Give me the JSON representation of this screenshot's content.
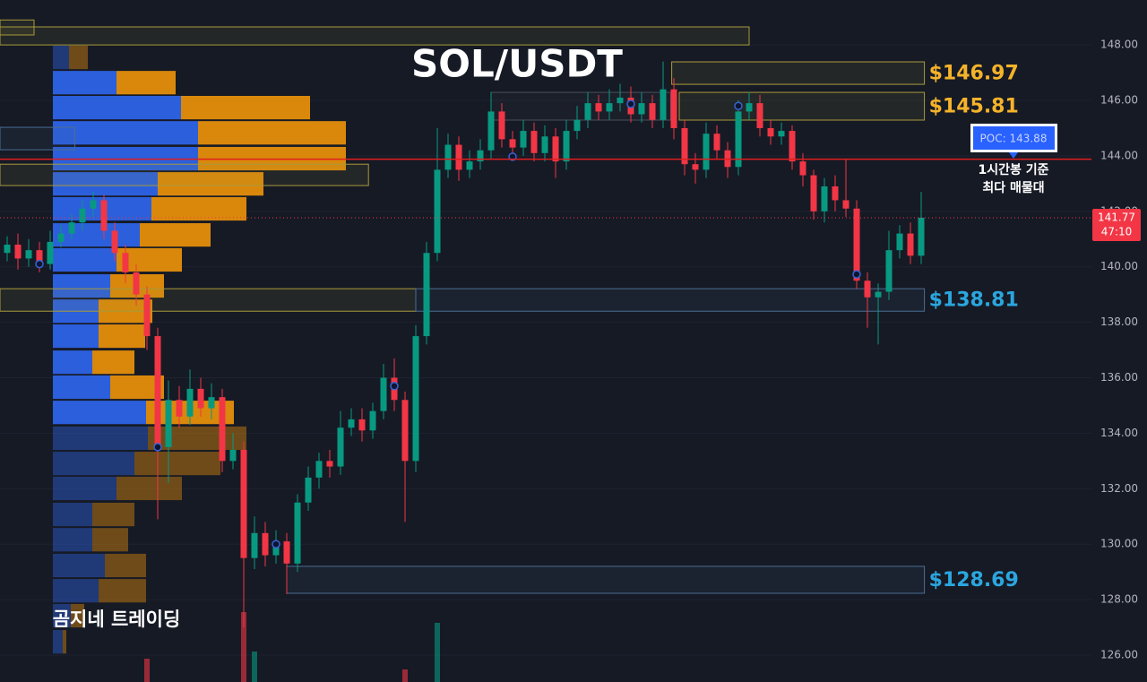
{
  "chart_data": {
    "type": "candlestick",
    "title": "SOL/USDT",
    "watermark": "곰지네 트레이딩",
    "ylim": [
      125.03,
      149.62
    ],
    "yticks": [
      {
        "value": 126,
        "label": "126.00"
      },
      {
        "value": 128,
        "label": "128.00"
      },
      {
        "value": 130,
        "label": "130.00"
      },
      {
        "value": 132,
        "label": "132.00"
      },
      {
        "value": 134,
        "label": "134.00"
      },
      {
        "value": 136,
        "label": "136.00"
      },
      {
        "value": 138,
        "label": "138.00"
      },
      {
        "value": 140,
        "label": "140.00"
      },
      {
        "value": 142,
        "label": "142.00"
      },
      {
        "value": 144,
        "label": "144.00"
      },
      {
        "value": 146,
        "label": "146.00"
      },
      {
        "value": 148,
        "label": "148.00"
      }
    ],
    "grid": true,
    "up_color": "#089981",
    "down_color": "#f23645",
    "open": [
      140.5,
      140.8,
      140.3,
      140.6,
      140.1,
      140.9,
      141.2,
      141.6,
      142.1,
      142.4,
      141.3,
      140.5,
      139.8,
      139.0,
      137.5,
      133.5,
      135.2,
      134.6,
      135.6,
      134.9,
      135.3,
      133.0,
      133.4,
      129.5,
      130.4,
      129.6,
      130.1,
      129.3,
      131.5,
      132.4,
      133.0,
      132.8,
      134.2,
      134.5,
      134.1,
      134.8,
      136.0,
      135.2,
      133.0,
      137.5,
      140.5,
      143.5,
      144.4,
      143.5,
      143.8,
      144.2,
      145.6,
      144.6,
      144.3,
      144.9,
      144.1,
      144.7,
      143.8,
      144.9,
      145.3,
      145.9,
      145.6,
      145.9,
      146.1,
      145.5,
      145.9,
      145.3,
      146.4,
      145.0,
      143.7,
      143.5,
      144.8,
      144.2,
      143.6,
      145.6,
      145.9,
      145.0,
      144.7,
      144.9,
      143.8,
      143.3,
      142.0,
      142.9,
      142.4,
      142.1,
      139.5,
      138.9,
      139.1,
      140.6,
      141.2,
      140.4
    ],
    "high": [
      141.1,
      141.2,
      141.0,
      140.9,
      141.3,
      141.5,
      141.9,
      142.4,
      142.7,
      142.6,
      141.6,
      140.8,
      140.1,
      139.3,
      137.8,
      135.9,
      135.7,
      136.3,
      136.0,
      135.8,
      135.6,
      134.0,
      133.7,
      131.0,
      130.8,
      130.5,
      130.4,
      131.8,
      132.8,
      133.3,
      133.4,
      134.8,
      134.9,
      134.9,
      135.1,
      136.5,
      136.7,
      135.5,
      137.9,
      140.9,
      145.0,
      144.8,
      144.7,
      144.2,
      144.6,
      146.3,
      145.9,
      144.9,
      145.3,
      145.2,
      145.1,
      145.0,
      145.3,
      145.8,
      146.3,
      146.2,
      146.4,
      146.6,
      146.5,
      146.3,
      146.2,
      147.4,
      146.8,
      145.3,
      144.1,
      145.2,
      145.1,
      144.5,
      146.0,
      146.3,
      146.2,
      145.3,
      145.2,
      145.1,
      144.1,
      143.5,
      143.2,
      143.3,
      143.9,
      142.4,
      139.8,
      139.4,
      141.3,
      141.5,
      141.6,
      142.7
    ],
    "low": [
      140.2,
      139.9,
      140.0,
      139.8,
      139.9,
      140.7,
      141.0,
      141.3,
      141.8,
      141.0,
      140.2,
      139.4,
      138.6,
      137.0,
      130.9,
      132.2,
      134.2,
      134.3,
      134.6,
      134.5,
      132.6,
      132.7,
      127.0,
      129.1,
      129.2,
      129.3,
      128.2,
      129.0,
      131.2,
      132.0,
      132.4,
      132.5,
      133.9,
      133.7,
      133.8,
      134.5,
      134.8,
      130.8,
      132.6,
      137.2,
      140.2,
      143.2,
      143.1,
      143.2,
      143.5,
      143.9,
      144.3,
      143.9,
      144.0,
      143.8,
      143.8,
      143.2,
      143.5,
      144.6,
      145.0,
      145.3,
      145.3,
      145.6,
      145.2,
      145.2,
      145.0,
      145.0,
      144.6,
      143.3,
      143.0,
      143.2,
      143.9,
      143.2,
      143.3,
      145.3,
      144.7,
      144.4,
      144.4,
      143.5,
      142.9,
      141.7,
      141.6,
      142.0,
      141.8,
      139.2,
      137.8,
      137.2,
      138.8,
      140.3,
      140.1,
      140.1
    ],
    "close": [
      140.8,
      140.3,
      140.6,
      140.1,
      140.9,
      141.2,
      141.6,
      142.1,
      142.4,
      141.3,
      140.5,
      139.8,
      139.0,
      137.5,
      133.5,
      135.2,
      134.6,
      135.6,
      134.9,
      135.3,
      133.0,
      133.4,
      129.5,
      130.4,
      129.6,
      130.1,
      129.3,
      131.5,
      132.4,
      133.0,
      132.8,
      134.2,
      134.5,
      134.1,
      134.8,
      136.0,
      135.2,
      133.0,
      137.5,
      140.5,
      143.5,
      144.4,
      143.5,
      143.8,
      144.2,
      145.6,
      144.6,
      144.3,
      144.9,
      144.1,
      144.7,
      143.8,
      144.9,
      145.3,
      145.9,
      145.6,
      145.9,
      146.1,
      145.5,
      145.9,
      145.3,
      146.4,
      145.0,
      143.7,
      143.5,
      144.8,
      144.2,
      143.6,
      145.6,
      145.9,
      145.0,
      144.7,
      144.9,
      143.8,
      143.3,
      142.0,
      142.9,
      142.4,
      142.1,
      139.5,
      138.9,
      139.1,
      140.6,
      141.2,
      140.4,
      141.77
    ],
    "volume": [
      null,
      null,
      null,
      null,
      null,
      null,
      null,
      null,
      null,
      null,
      null,
      null,
      null,
      26,
      null,
      null,
      null,
      null,
      null,
      null,
      null,
      null,
      78,
      34,
      null,
      null,
      null,
      null,
      null,
      null,
      null,
      null,
      null,
      null,
      null,
      null,
      null,
      14,
      null,
      null,
      66,
      null,
      null,
      null,
      null,
      null,
      null,
      null,
      null,
      null,
      null,
      null,
      null,
      null,
      null,
      null,
      null,
      null,
      null,
      null,
      null,
      null,
      null,
      null,
      null,
      null,
      null,
      null,
      null,
      null,
      null,
      null,
      null,
      null,
      null,
      null,
      null,
      null,
      null,
      null,
      null,
      null,
      null,
      null,
      null,
      null
    ],
    "profile": {
      "prices": [
        147.55,
        146.64,
        145.74,
        144.83,
        143.9,
        142.99,
        142.09,
        141.15,
        140.25,
        139.31,
        138.4,
        137.5,
        136.56,
        135.66,
        134.75,
        133.82,
        132.91,
        132.01,
        131.07,
        130.16,
        129.23,
        128.32,
        127.42,
        126.48
      ],
      "buy": [
        18,
        71,
        143,
        162,
        162,
        117,
        110,
        97,
        71,
        64,
        51,
        51,
        44,
        64,
        104,
        106,
        91,
        71,
        44,
        44,
        58,
        51,
        20,
        11
      ],
      "sell": [
        21,
        66,
        144,
        165,
        165,
        118,
        106,
        79,
        73,
        60,
        60,
        52,
        47,
        60,
        98,
        110,
        96,
        73,
        47,
        40,
        46,
        53,
        15,
        4
      ],
      "buy_color": "#2c5fdb",
      "sell_color": "#d9880c",
      "value_area": [
        134.3,
        147.1
      ]
    },
    "zones": [
      {
        "top": 148.9,
        "bottom": 148.36,
        "start": -0.7,
        "end": 2.5,
        "color": "#a89a3c"
      },
      {
        "top": 148.65,
        "bottom": 148.0,
        "start": -0.7,
        "end": 69,
        "color": "#a89a3c"
      },
      {
        "top": 147.39,
        "bottom": 146.58,
        "start": 61.8,
        "end": 85.3,
        "color": "#a89a3c",
        "label": "$146.97",
        "label_color": "#f5b32a"
      },
      {
        "top": 146.29,
        "bottom": 145.29,
        "start": 45,
        "end": 61.7,
        "color": "#4a4f5a"
      },
      {
        "top": 146.29,
        "bottom": 145.29,
        "start": 62.5,
        "end": 85.3,
        "color": "#a89a3c",
        "label": "$145.81",
        "label_color": "#f5b32a"
      },
      {
        "top": 145.03,
        "bottom": 144.22,
        "start": -0.7,
        "end": 6.3,
        "color": "#4a6f93"
      },
      {
        "top": 143.7,
        "bottom": 142.93,
        "start": -0.7,
        "end": 33.6,
        "color": "#a89a3c"
      },
      {
        "top": 139.21,
        "bottom": 138.4,
        "start": -0.7,
        "end": 38,
        "color": "#a89a3c"
      },
      {
        "top": 139.21,
        "bottom": 138.4,
        "start": 38,
        "end": 85.3,
        "color": "#4a6f93",
        "label": "$138.81",
        "label_color": "#2ba6df"
      },
      {
        "top": 129.2,
        "bottom": 128.23,
        "start": 26,
        "end": 85.3,
        "color": "#4a6f93",
        "label": "$128.69",
        "label_color": "#2ba6df"
      }
    ],
    "session_poc": {
      "x": [
        3,
        14,
        25,
        36,
        47,
        58,
        68,
        79
      ],
      "values": [
        140.1,
        133.5,
        130.0,
        135.7,
        143.97,
        145.87,
        145.8,
        139.73
      ]
    },
    "poc": {
      "value": 143.88,
      "label": "POC: 143.88",
      "color": "#e01e1e"
    },
    "poc_note": [
      "1시간봉 기준",
      "최다 매물대"
    ],
    "last_price": {
      "value": 141.77,
      "label": "141.77"
    },
    "countdown": "47:10"
  }
}
